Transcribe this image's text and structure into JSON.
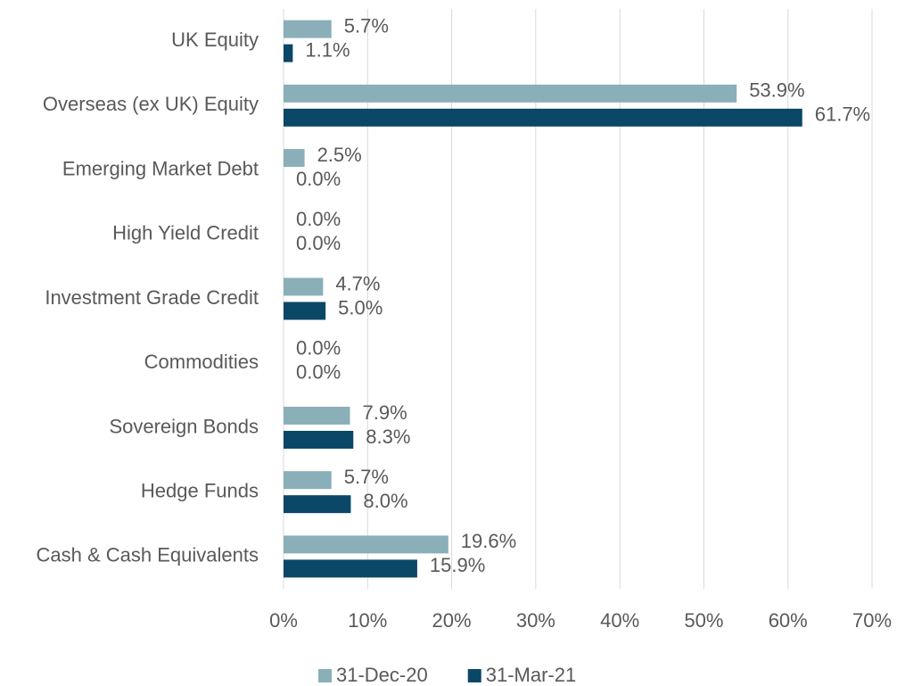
{
  "chart_data": {
    "type": "bar",
    "orientation": "horizontal",
    "categories": [
      "UK Equity",
      "Overseas (ex UK) Equity",
      "Emerging Market Debt",
      "High Yield Credit",
      "Investment Grade Credit",
      "Commodities",
      "Sovereign Bonds",
      "Hedge Funds",
      "Cash & Cash Equivalents"
    ],
    "series": [
      {
        "name": "31-Dec-20",
        "color": "#8aafb8",
        "values": [
          5.7,
          53.9,
          2.5,
          0,
          4.7,
          0,
          7.9,
          5.7,
          19.6
        ],
        "value_labels": [
          "5.7%",
          "53.9%",
          "2.5%",
          "0.0%",
          "4.7%",
          "0.0%",
          "7.9%",
          "5.7%",
          "19.6%"
        ]
      },
      {
        "name": "31-Mar-21",
        "color": "#0b4766",
        "values": [
          1.1,
          61.7,
          0,
          0,
          5.0,
          0,
          8.3,
          8.0,
          15.9
        ],
        "value_labels": [
          "1.1%",
          "61.7%",
          "0.0%",
          "0.0%",
          "5.0%",
          "0.0%",
          "8.3%",
          "8.0%",
          "15.9%"
        ]
      }
    ],
    "xlim": [
      0,
      70
    ],
    "xticks": [
      {
        "value": 0,
        "label": "0%"
      },
      {
        "value": 10,
        "label": "10%"
      },
      {
        "value": 20,
        "label": "20%"
      },
      {
        "value": 30,
        "label": "30%"
      },
      {
        "value": 40,
        "label": "40%"
      },
      {
        "value": 50,
        "label": "50%"
      },
      {
        "value": 60,
        "label": "60%"
      },
      {
        "value": 70,
        "label": "70%"
      }
    ],
    "grid": true,
    "legend": "bottom"
  }
}
